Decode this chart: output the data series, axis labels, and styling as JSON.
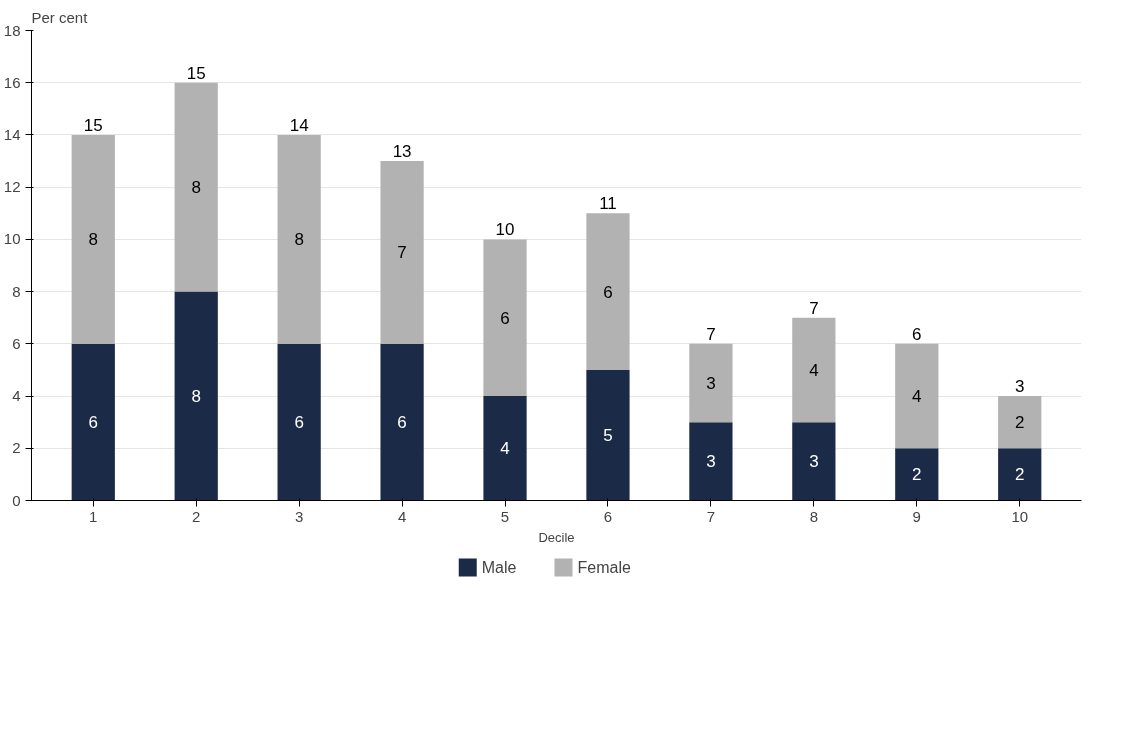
{
  "chart_data": {
    "type": "bar",
    "stacked": true,
    "xlabel": "Decile",
    "ylabel": "Per cent",
    "categories": [
      "1",
      "2",
      "3",
      "4",
      "5",
      "6",
      "7",
      "8",
      "9",
      "10"
    ],
    "series": [
      {
        "name": "Male",
        "color": "#1b2a47",
        "values": [
          6,
          8,
          6,
          6,
          4,
          5,
          3,
          3,
          2,
          2
        ]
      },
      {
        "name": "Female",
        "color": "#b2b2b2",
        "values": [
          8,
          8,
          8,
          7,
          6,
          6,
          3,
          4,
          4,
          2
        ]
      }
    ],
    "totals": [
      "15",
      "15",
      "14",
      "13",
      "10",
      "11",
      "7",
      "7",
      "6",
      "3"
    ],
    "data_labels": true,
    "ylim": [
      0,
      18
    ],
    "yticks": [
      0,
      2,
      4,
      6,
      8,
      10,
      12,
      14,
      16,
      18
    ],
    "grid": "y",
    "legend": "bottom"
  }
}
